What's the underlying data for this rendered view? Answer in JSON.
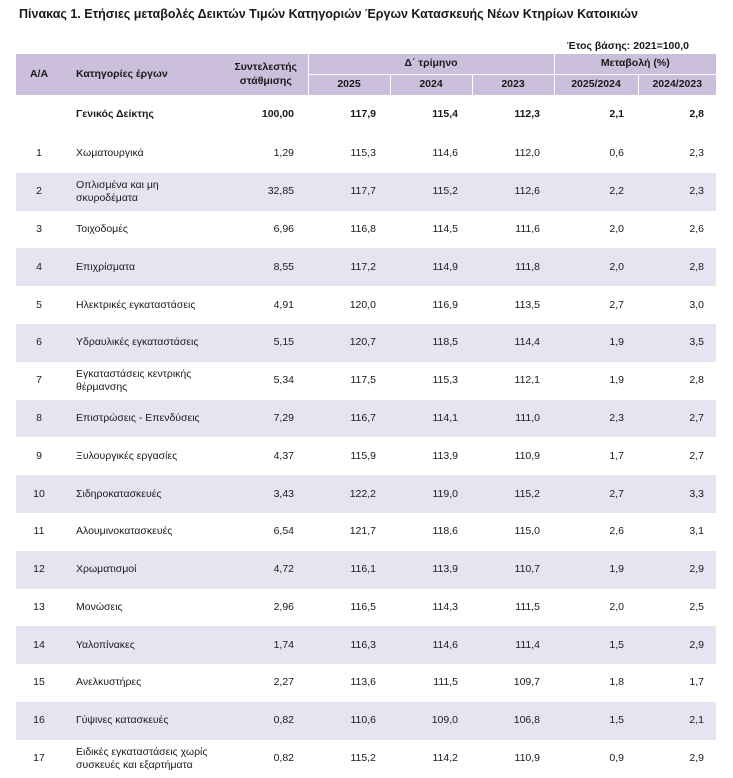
{
  "title": "Πίνακας 1. Ετήσιες μεταβολές Δεικτών Τιμών Κατηγοριών Έργων Κατασκευής Νέων Κτηρίων Κατοικιών",
  "base_year_note": "Έτος  βάσης: 2021=100,0",
  "header": {
    "aa": "Α/Α",
    "category": "Κατηγορίες έργων",
    "weight": "Συντελεστής στάθμισης",
    "quarter": "Δ΄ τρίμηνο",
    "change": "Μεταβολή (%)",
    "y2025": "2025",
    "y2024": "2024",
    "y2023": "2023",
    "ch1": "2025/2024",
    "ch2": "2024/2023"
  },
  "general": {
    "aa": "",
    "category": "Γενικός Δείκτης",
    "weight": "100,00",
    "v2025": "117,9",
    "v2024": "115,4",
    "v2023": "112,3",
    "ch1": "2,1",
    "ch2": "2,8"
  },
  "rows": [
    {
      "aa": "1",
      "category": "Χωματουργικά",
      "weight": "1,29",
      "v2025": "115,3",
      "v2024": "114,6",
      "v2023": "112,0",
      "ch1": "0,6",
      "ch2": "2,3"
    },
    {
      "aa": "2",
      "category": "Οπλισμένα και μη σκυροδέματα",
      "weight": "32,85",
      "v2025": "117,7",
      "v2024": "115,2",
      "v2023": "112,6",
      "ch1": "2,2",
      "ch2": "2,3"
    },
    {
      "aa": "3",
      "category": "Τοιχοδομές",
      "weight": "6,96",
      "v2025": "116,8",
      "v2024": "114,5",
      "v2023": "111,6",
      "ch1": "2,0",
      "ch2": "2,6"
    },
    {
      "aa": "4",
      "category": "Επιχρίσματα",
      "weight": "8,55",
      "v2025": "117,2",
      "v2024": "114,9",
      "v2023": "111,8",
      "ch1": "2,0",
      "ch2": "2,8"
    },
    {
      "aa": "5",
      "category": "Ηλεκτρικές εγκαταστάσεις",
      "weight": "4,91",
      "v2025": "120,0",
      "v2024": "116,9",
      "v2023": "113,5",
      "ch1": "2,7",
      "ch2": "3,0"
    },
    {
      "aa": "6",
      "category": "Υδραυλικές εγκαταστάσεις",
      "weight": "5,15",
      "v2025": "120,7",
      "v2024": "118,5",
      "v2023": "114,4",
      "ch1": "1,9",
      "ch2": "3,5"
    },
    {
      "aa": "7",
      "category": "Εγκαταστάσεις κεντρικής θέρμανσης",
      "weight": "5,34",
      "v2025": "117,5",
      "v2024": "115,3",
      "v2023": "112,1",
      "ch1": "1,9",
      "ch2": "2,8"
    },
    {
      "aa": "8",
      "category": "Επιστρώσεις - Επενδύσεις",
      "weight": "7,29",
      "v2025": "116,7",
      "v2024": "114,1",
      "v2023": "111,0",
      "ch1": "2,3",
      "ch2": "2,7"
    },
    {
      "aa": "9",
      "category": "Ξυλουργικές εργασίες",
      "weight": "4,37",
      "v2025": "115,9",
      "v2024": "113,9",
      "v2023": "110,9",
      "ch1": "1,7",
      "ch2": "2,7"
    },
    {
      "aa": "10",
      "category": "Σιδηροκατασκευές",
      "weight": "3,43",
      "v2025": "122,2",
      "v2024": "119,0",
      "v2023": "115,2",
      "ch1": "2,7",
      "ch2": "3,3"
    },
    {
      "aa": "11",
      "category": "Αλουμινοκατασκευές",
      "weight": "6,54",
      "v2025": "121,7",
      "v2024": "118,6",
      "v2023": "115,0",
      "ch1": "2,6",
      "ch2": "3,1"
    },
    {
      "aa": "12",
      "category": "Χρωματισμοί",
      "weight": "4,72",
      "v2025": "116,1",
      "v2024": "113,9",
      "v2023": "110,7",
      "ch1": "1,9",
      "ch2": "2,9"
    },
    {
      "aa": "13",
      "category": "Μονώσεις",
      "weight": "2,96",
      "v2025": "116,5",
      "v2024": "114,3",
      "v2023": "111,5",
      "ch1": "2,0",
      "ch2": "2,5"
    },
    {
      "aa": "14",
      "category": "Υαλοπίνακες",
      "weight": "1,74",
      "v2025": "116,3",
      "v2024": "114,6",
      "v2023": "111,4",
      "ch1": "1,5",
      "ch2": "2,9"
    },
    {
      "aa": "15",
      "category": "Ανελκυστήρες",
      "weight": "2,27",
      "v2025": "113,6",
      "v2024": "111,5",
      "v2023": "109,7",
      "ch1": "1,8",
      "ch2": "1,7"
    },
    {
      "aa": "16",
      "category": "Γύψινες κατασκευές",
      "weight": "0,82",
      "v2025": "110,6",
      "v2024": "109,0",
      "v2023": "106,8",
      "ch1": "1,5",
      "ch2": "2,1"
    },
    {
      "aa": "17",
      "category": "Ειδικές εγκαταστάσεις χωρίς συσκευές και εξαρτήματα",
      "weight": "0,82",
      "v2025": "115,2",
      "v2024": "114,2",
      "v2023": "110,9",
      "ch1": "0,9",
      "ch2": "2,9"
    }
  ]
}
